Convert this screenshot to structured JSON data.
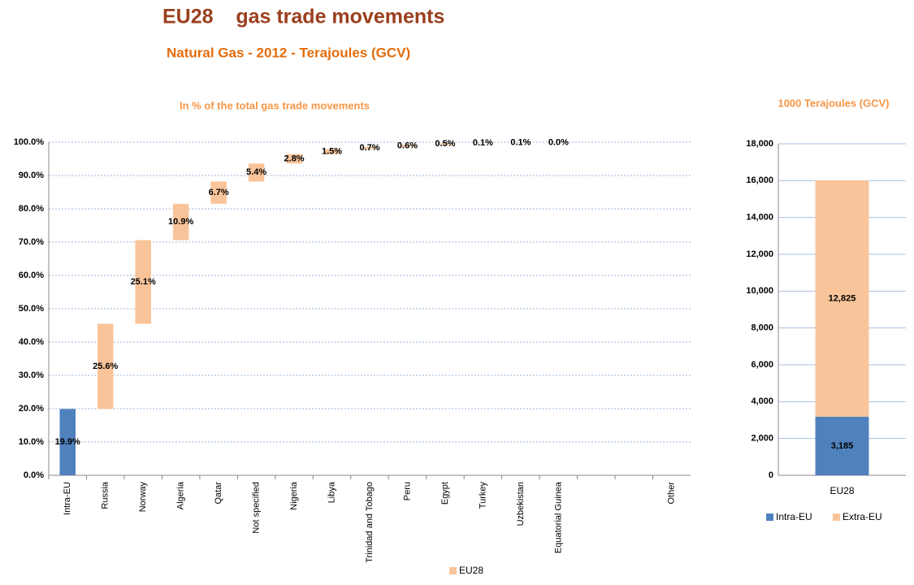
{
  "header": {
    "title": "EU28    gas trade movements",
    "subtitle": "Natural Gas - 2012 - Terajoules (GCV)"
  },
  "chart_data": [
    {
      "type": "waterfall",
      "title": "In % of the total gas trade movements",
      "categories": [
        "Intra-EU",
        "Russia",
        "Norway",
        "Algeria",
        "Qatar",
        "Not specified",
        "Nigeria",
        "Libya",
        "Trinidad and Tobago",
        "Peru",
        "Egypt",
        "Turkey",
        "Uzbekistan",
        "Equatorial Guinea",
        null,
        null,
        "Other"
      ],
      "series": [
        {
          "name": "EU28",
          "color": "#f9c49a",
          "values": [
            19.9,
            25.6,
            25.1,
            10.9,
            6.7,
            5.4,
            2.8,
            1.5,
            0.7,
            0.6,
            0.5,
            0.1,
            0.1,
            0.0,
            null,
            null,
            null
          ],
          "value_labels": [
            "19.9%",
            "25.6%",
            "25.1%",
            "10.9%",
            "6.7%",
            "5.4%",
            "2.8%",
            "1.5%",
            "0.7%",
            "0.6%",
            "0.5%",
            "0.1%",
            "0.1%",
            "0.0%",
            null,
            null,
            null
          ],
          "colors": [
            "#4f81bd",
            "#f9c49a",
            "#f9c49a",
            "#f9c49a",
            "#f9c49a",
            "#f9c49a",
            "#f9c49a",
            "#f9c49a",
            "#f9c49a",
            "#f9c49a",
            "#f9c49a",
            "#f9c49a",
            "#f9c49a",
            "#f9c49a",
            null,
            null,
            null
          ]
        }
      ],
      "ylim": [
        0,
        100
      ],
      "yticks": [
        {
          "value": 0,
          "label": "0.0%"
        },
        {
          "value": 10,
          "label": "10.0%"
        },
        {
          "value": 20,
          "label": "20.0%"
        },
        {
          "value": 30,
          "label": "30.0%"
        },
        {
          "value": 40,
          "label": "40.0%"
        },
        {
          "value": 50,
          "label": "50.0%"
        },
        {
          "value": 60,
          "label": "60.0%"
        },
        {
          "value": 70,
          "label": "70.0%"
        },
        {
          "value": 80,
          "label": "80.0%"
        },
        {
          "value": 90,
          "label": "90.0%"
        },
        {
          "value": 100,
          "label": "100.0%"
        }
      ],
      "grid": true,
      "legend": "bottom"
    },
    {
      "type": "stacked_bar",
      "title": "1000 Terajoules (GCV)",
      "categories": [
        "EU28"
      ],
      "series": [
        {
          "name": "Intra-EU",
          "color": "#4f81bd",
          "values": [
            3185
          ],
          "value_labels": [
            "3,185"
          ]
        },
        {
          "name": "Extra-EU",
          "color": "#f9c49a",
          "values": [
            12825
          ],
          "value_labels": [
            "12,825"
          ]
        }
      ],
      "ylim": [
        0,
        18000
      ],
      "yticks": [
        0,
        {
          "value": 2000,
          "label": "2,000"
        },
        {
          "value": 4000,
          "label": "4,000"
        },
        {
          "value": 6000,
          "label": "6,000"
        },
        {
          "value": 8000,
          "label": "8,000"
        },
        {
          "value": 10000,
          "label": "10,000"
        },
        {
          "value": 12000,
          "label": "12,000"
        },
        {
          "value": 14000,
          "label": "14,000"
        },
        {
          "value": 16000,
          "label": "16,000"
        },
        {
          "value": 18000,
          "label": "18,000"
        }
      ],
      "grid": true,
      "legend": "bottom"
    }
  ]
}
